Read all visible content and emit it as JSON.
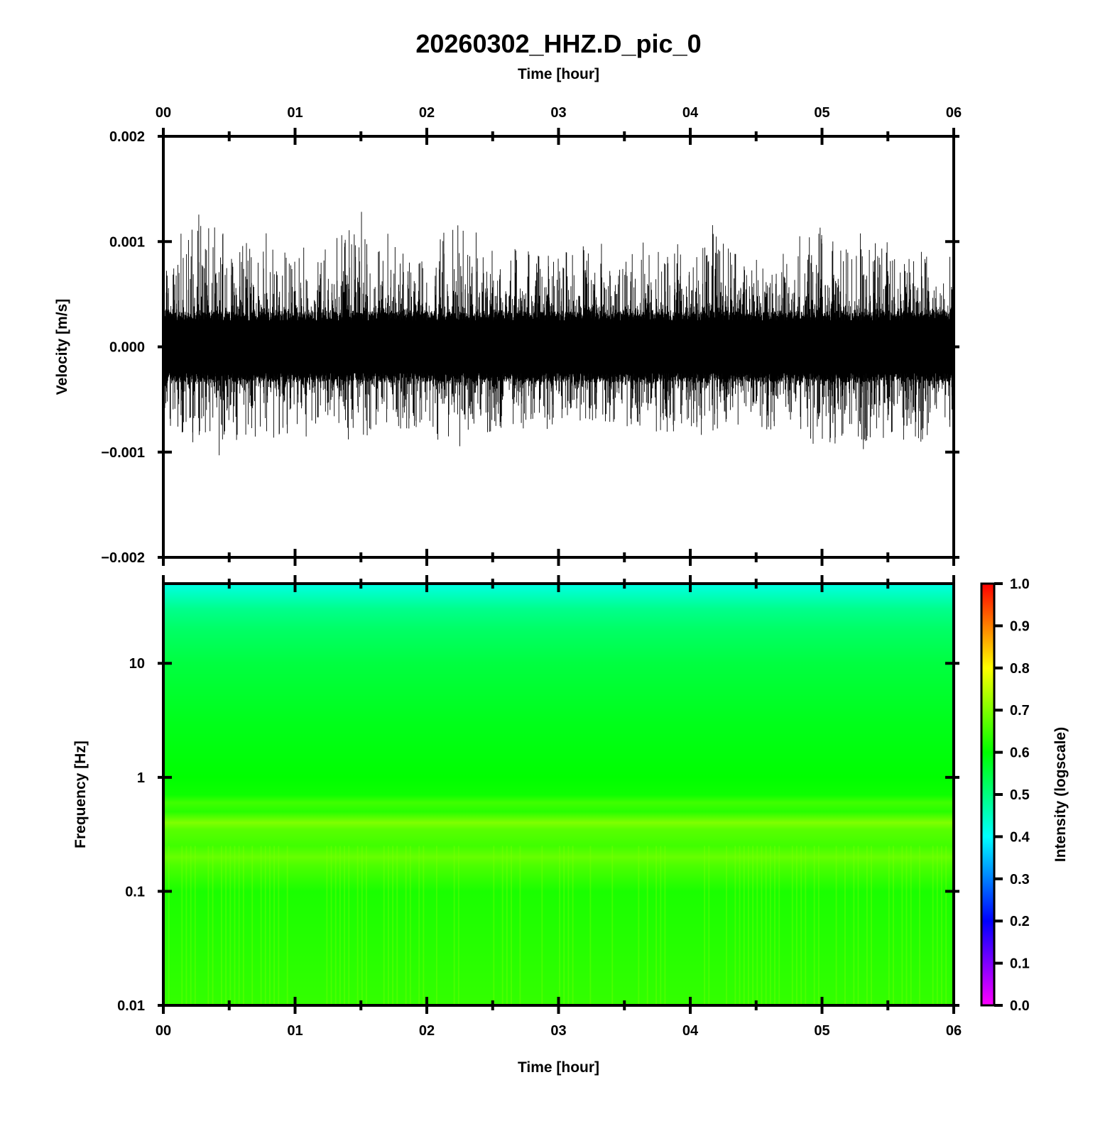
{
  "chart_data": [
    {
      "type": "line",
      "title": "20260302_HHZ.D_pic_0",
      "xlabel": "Time [hour]",
      "ylabel": "Velocity [m/s]",
      "x_tick_labels": [
        "00",
        "01",
        "02",
        "03",
        "04",
        "05",
        "06"
      ],
      "xlim": [
        0,
        6
      ],
      "ylim": [
        -0.002,
        0.002
      ],
      "y_ticks": [
        -0.002,
        -0.001,
        0.0,
        0.001,
        0.002
      ],
      "y_tick_labels": [
        "−0.002",
        "−0.001",
        "0.000",
        "0.001",
        "0.002"
      ],
      "series": [
        {
          "x": [
            0,
            0.25,
            0.5,
            0.75,
            1,
            1.25,
            1.5,
            1.75,
            2,
            2.25,
            2.5,
            2.75,
            3,
            3.25,
            3.5,
            3.75,
            4,
            4.25,
            4.5,
            4.75,
            5,
            5.25,
            5.5,
            5.75,
            6
          ],
          "envelope_max": [
            0.00085,
            0.0013,
            0.00098,
            0.001,
            0.00098,
            0.0009,
            0.0012,
            0.00102,
            0.0009,
            0.00128,
            0.00092,
            0.00098,
            0.0009,
            0.00093,
            0.00098,
            0.00093,
            0.00098,
            0.00115,
            0.0009,
            0.00098,
            0.0011,
            0.00108,
            0.00098,
            0.00095,
            0.00085
          ],
          "envelope_min": [
            -0.0007,
            -0.00105,
            -0.0009,
            -0.0008,
            -0.00083,
            -0.0008,
            -0.00082,
            -0.00078,
            -0.00076,
            -0.0009,
            -0.00078,
            -0.00076,
            -0.0007,
            -0.00072,
            -0.0007,
            -0.00074,
            -0.00082,
            -0.00078,
            -0.0008,
            -0.00082,
            -0.0009,
            -0.00093,
            -0.00085,
            -0.00088,
            -0.0007
          ],
          "rms": 0.00024
        }
      ],
      "grid": false
    },
    {
      "type": "heatmap",
      "xlabel": "Time [hour]",
      "ylabel": "Frequency [Hz]",
      "x_tick_labels": [
        "00",
        "01",
        "02",
        "03",
        "04",
        "05",
        "06"
      ],
      "xlim": [
        0,
        6
      ],
      "y_scale": "log",
      "ylim": [
        0.01,
        50
      ],
      "y_ticks": [
        0.01,
        0.1,
        1,
        10
      ],
      "y_tick_labels": [
        "0.01",
        "0.1",
        "1",
        "10"
      ],
      "intensity_profile": {
        "frequency_hz": [
          0.01,
          0.03,
          0.1,
          0.17,
          0.2,
          0.25,
          0.35,
          0.4,
          0.5,
          0.6,
          0.7,
          1,
          3,
          10,
          20,
          30,
          40,
          50
        ],
        "intensity": [
          0.64,
          0.63,
          0.62,
          0.66,
          0.68,
          0.65,
          0.67,
          0.7,
          0.63,
          0.65,
          0.61,
          0.6,
          0.58,
          0.55,
          0.52,
          0.49,
          0.45,
          0.42
        ]
      },
      "colorbar": {
        "label": "Intensity (logscale)",
        "range": [
          0,
          1
        ],
        "tick_labels": [
          "0.0",
          "0.1",
          "0.2",
          "0.3",
          "0.4",
          "0.5",
          "0.6",
          "0.7",
          "0.8",
          "0.9",
          "1.0"
        ],
        "colormap": [
          "#ff00ff",
          "#0000ff",
          "#00ffff",
          "#00ff00",
          "#ffff00",
          "#ff0000"
        ]
      },
      "grid": false
    }
  ]
}
